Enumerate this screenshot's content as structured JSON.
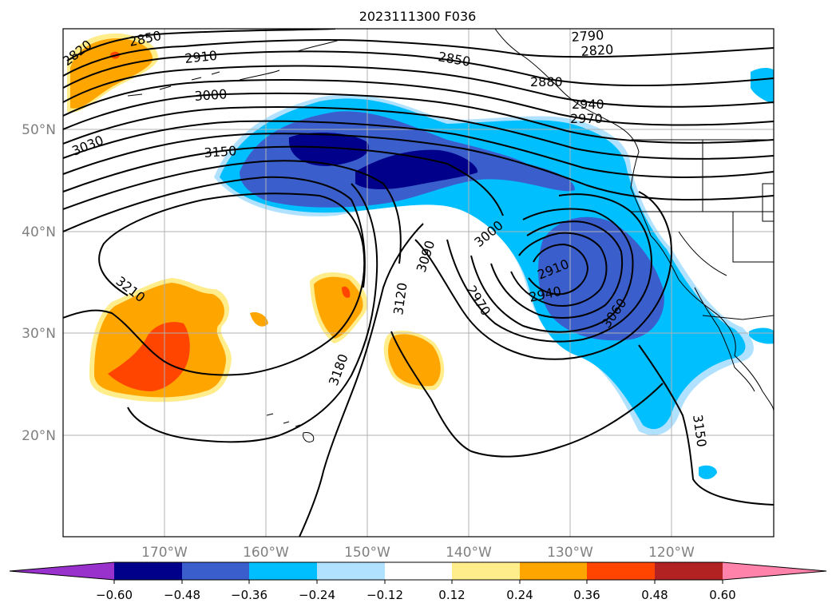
{
  "title": "2023111300 F036",
  "colors": {
    "land_outline": "#000000",
    "contour": "#000000",
    "grid": "#b0b0b0",
    "axis_label": "#808080"
  },
  "axes": {
    "lat_labels": [
      "50°N",
      "40°N",
      "30°N",
      "20°N"
    ],
    "lon_labels": [
      "170°W",
      "160°W",
      "150°W",
      "140°W",
      "130°W",
      "120°W"
    ]
  },
  "colorbar": {
    "colors": [
      "#9932cc",
      "#00008b",
      "#3a5fcd",
      "#00bfff",
      "#b0e2ff",
      "#ffffff",
      "#ffec8b",
      "#ffa500",
      "#ff4500",
      "#b22222",
      "#ff82ab"
    ],
    "ticks": [
      "−0.60",
      "−0.48",
      "−0.36",
      "−0.24",
      "−0.12",
      "0.12",
      "0.24",
      "0.36",
      "0.48",
      "0.60"
    ]
  },
  "contour_labels": [
    "2820",
    "2850",
    "2910",
    "3000",
    "3030",
    "3150",
    "2850",
    "2790",
    "2820",
    "2880",
    "2940",
    "2970",
    "3000",
    "3090",
    "3120",
    "2910",
    "2940",
    "2970",
    "3060",
    "3210",
    "3180",
    "3150"
  ]
}
